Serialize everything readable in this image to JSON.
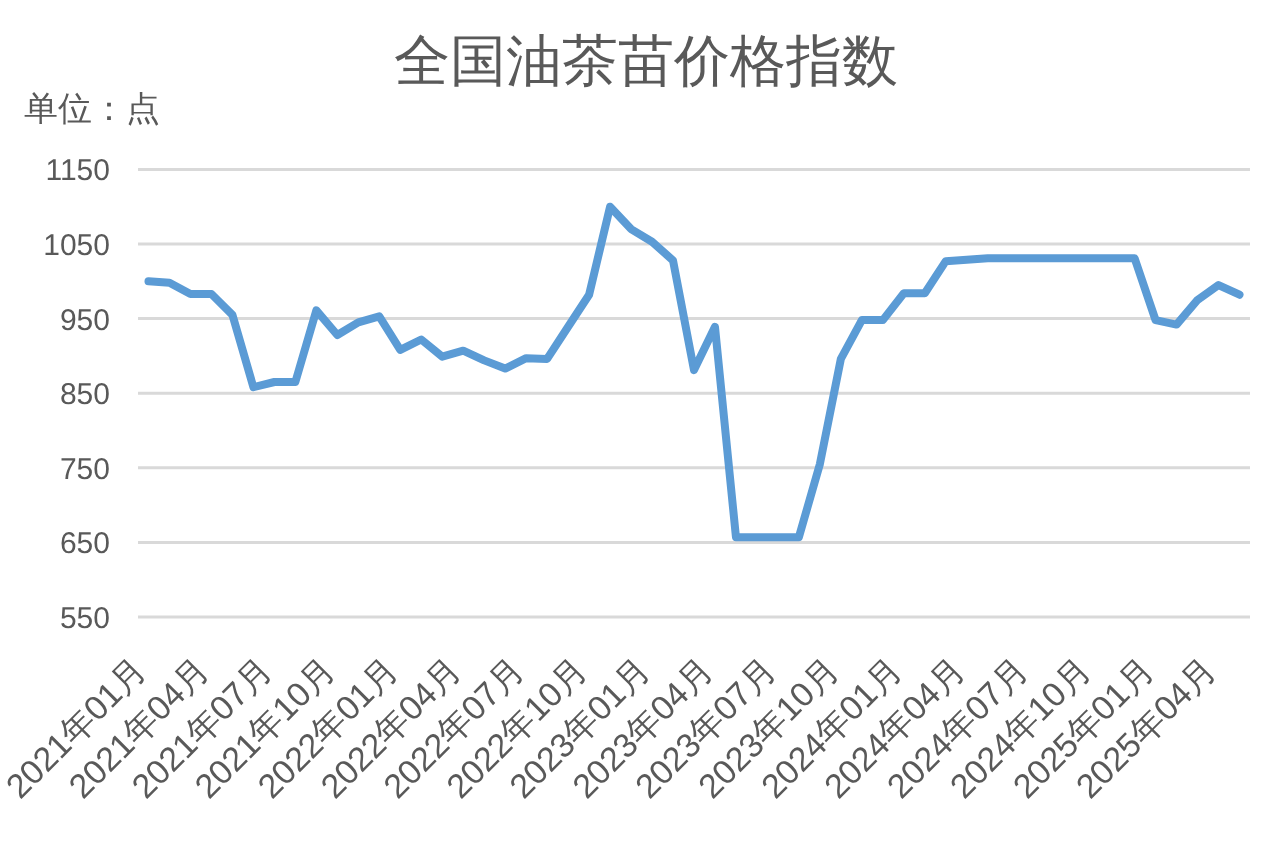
{
  "chart_data": {
    "type": "line",
    "title": "全国油茶苗价格指数",
    "ylabel": "单位：点",
    "categories": [
      "2021年01月",
      null,
      null,
      "2021年04月",
      null,
      null,
      "2021年07月",
      null,
      null,
      "2021年10月",
      null,
      null,
      "2022年01月",
      null,
      null,
      "2022年04月",
      null,
      null,
      "2022年07月",
      null,
      null,
      "2022年10月",
      null,
      null,
      "2023年01月",
      null,
      null,
      "2023年04月",
      null,
      null,
      "2023年07月",
      null,
      null,
      "2023年10月",
      null,
      null,
      "2024年01月",
      null,
      null,
      "2024年04月",
      null,
      null,
      "2024年07月",
      null,
      null,
      "2024年10月",
      null,
      null,
      "2025年01月",
      null,
      null,
      "2025年04月",
      null
    ],
    "values": [
      1000,
      998,
      983,
      983,
      955,
      858,
      865,
      865,
      961,
      928,
      945,
      953,
      908,
      922,
      899,
      907,
      894,
      883,
      897,
      896,
      939,
      982,
      1100,
      1070,
      1053,
      1028,
      881,
      939,
      657,
      657,
      657,
      657,
      755,
      896,
      948,
      948,
      984,
      984,
      1027,
      1029,
      1031,
      1031,
      1031,
      1031,
      1031,
      1031,
      1031,
      1031,
      948,
      942,
      975,
      995,
      982
    ],
    "color": "#5b9bd5",
    "ylim": [
      550,
      1150
    ],
    "yticks": [
      550,
      650,
      750,
      850,
      950,
      1050,
      1150
    ],
    "grid": "y"
  }
}
